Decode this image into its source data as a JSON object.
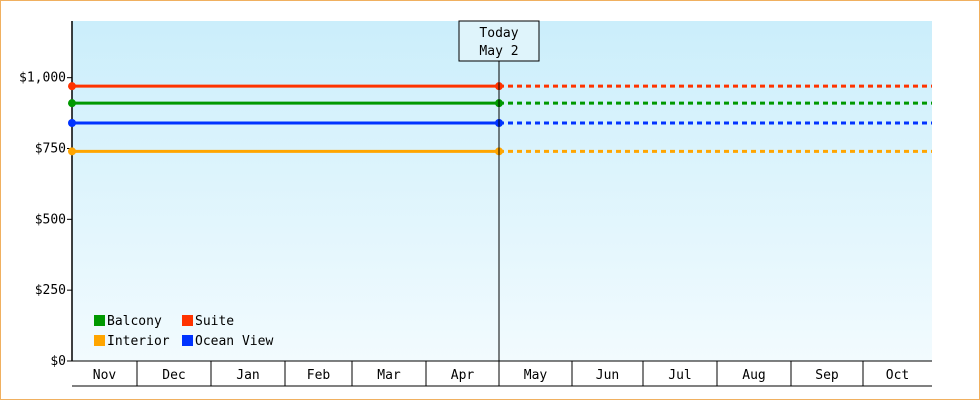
{
  "chart_data": {
    "type": "line",
    "title": "",
    "xlabel": "",
    "ylabel": "",
    "months": [
      "Nov",
      "Dec",
      "Jan",
      "Feb",
      "Mar",
      "Apr",
      "May",
      "Jun",
      "Jul",
      "Aug",
      "Sep",
      "Oct"
    ],
    "ylim": [
      0,
      1200
    ],
    "yticks": [
      0,
      250,
      500,
      750,
      1000
    ],
    "ytick_labels": [
      "$0",
      "$250",
      "$500",
      "$750",
      "$1,000"
    ],
    "grid": false,
    "today": {
      "line1": "Today",
      "line2": "May 2",
      "month_fraction": 6.0
    },
    "series": [
      {
        "name": "Suite",
        "color": "#ff3300",
        "value": 970
      },
      {
        "name": "Balcony",
        "color": "#009900",
        "value": 910
      },
      {
        "name": "Ocean View",
        "color": "#0033ff",
        "value": 840
      },
      {
        "name": "Interior",
        "color": "#ffa500",
        "value": 740
      }
    ],
    "legend": {
      "placement": "bottom-left",
      "rows": [
        [
          "Balcony",
          "Suite"
        ],
        [
          "Interior",
          "Ocean View"
        ]
      ]
    }
  }
}
